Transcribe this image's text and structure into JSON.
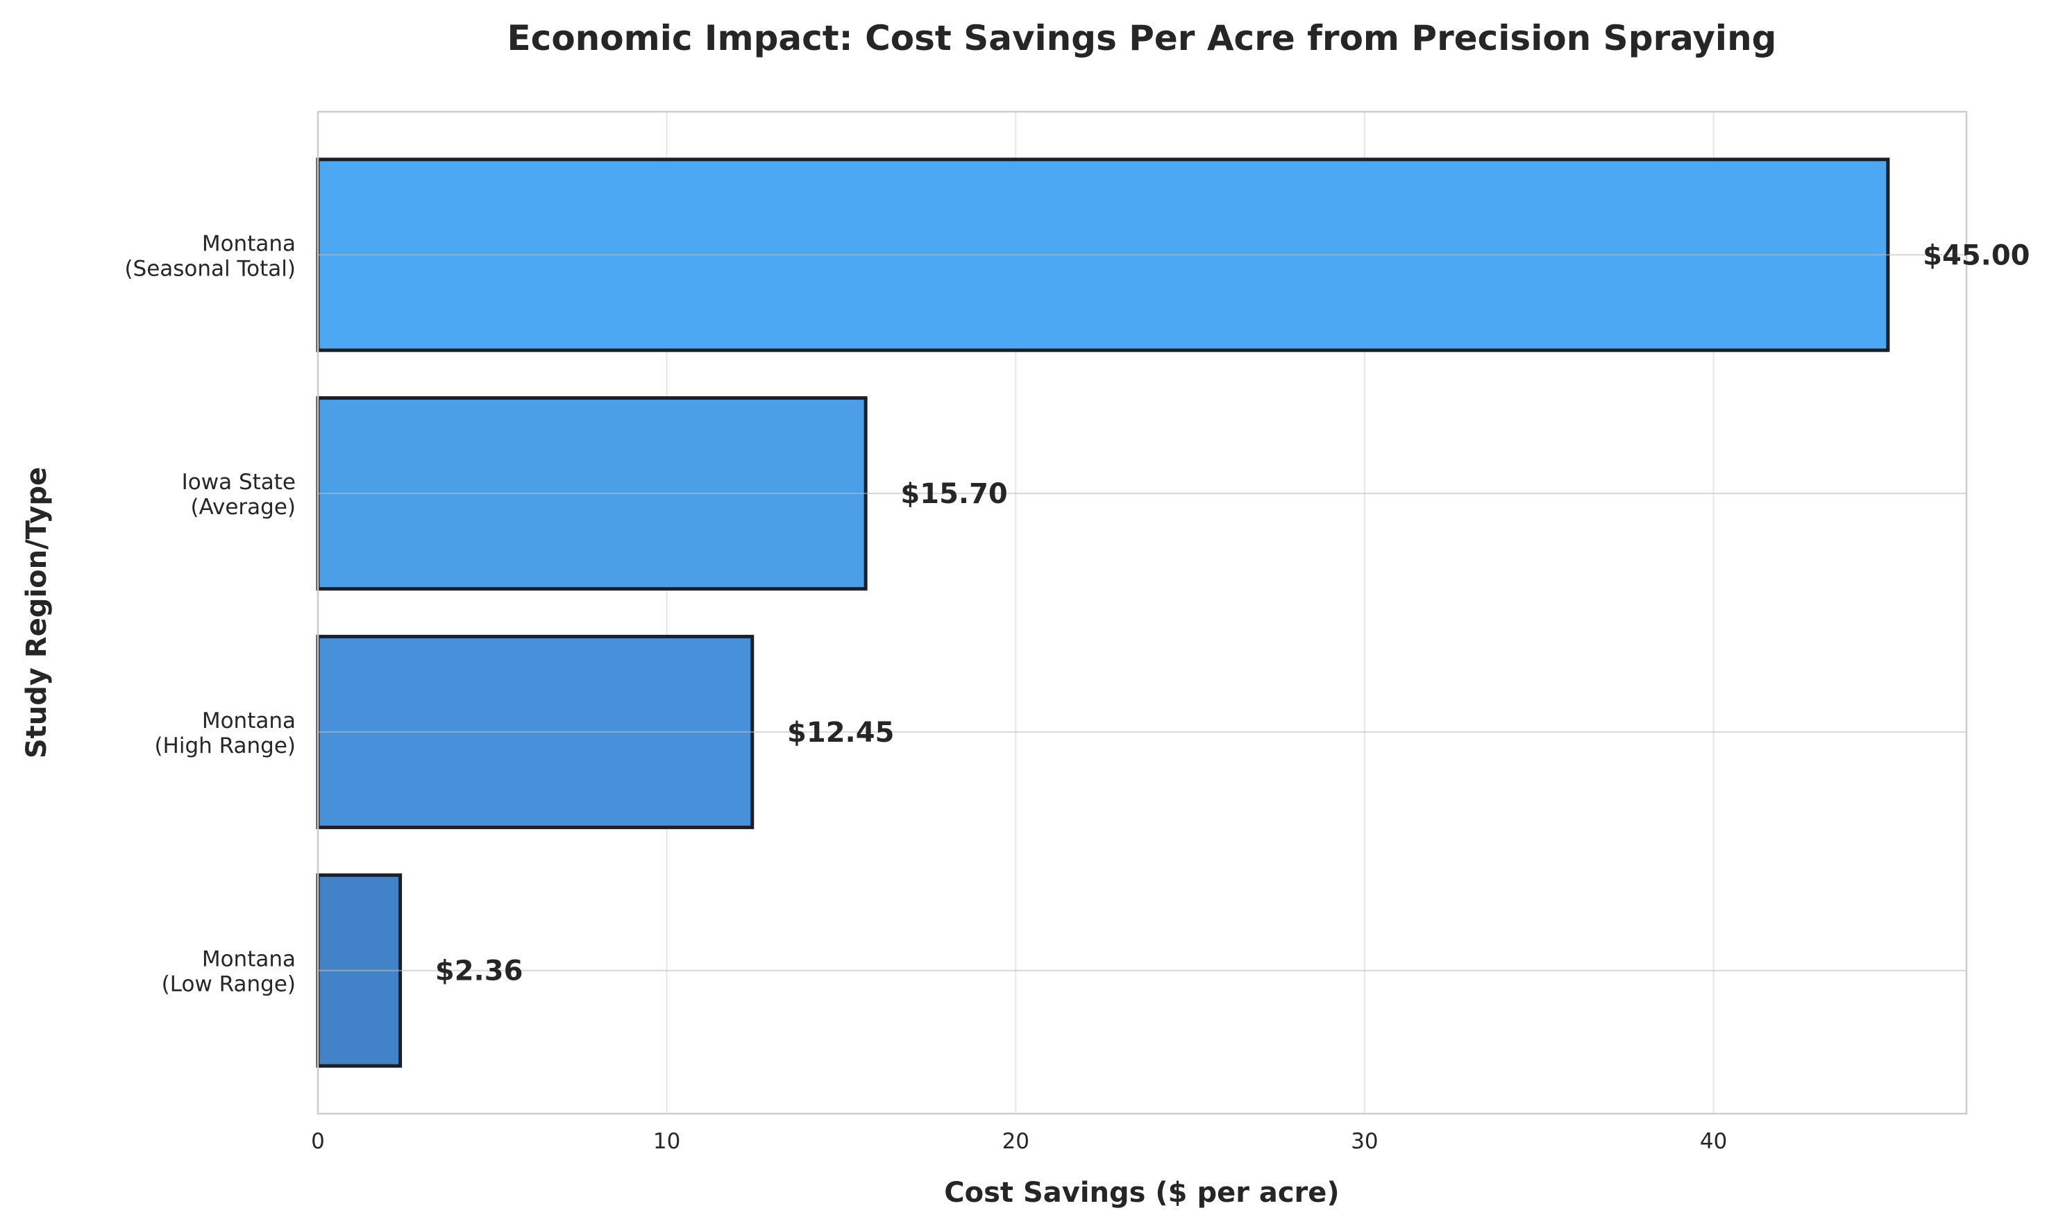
{
  "chart_data": {
    "type": "bar",
    "orientation": "horizontal",
    "title": "Economic Impact: Cost Savings Per Acre from Precision Spraying",
    "xlabel": "Cost Savings ($ per acre)",
    "ylabel": "Study Region/Type",
    "categories": [
      [
        "Montana",
        "(Low Range)"
      ],
      [
        "Montana",
        "(High Range)"
      ],
      [
        "Iowa State",
        "(Average)"
      ],
      [
        "Montana",
        "(Seasonal Total)"
      ]
    ],
    "values": [
      2.36,
      12.45,
      15.7,
      45.0
    ],
    "data_labels": [
      "$2.36",
      "$12.45",
      "$15.70",
      "$45.00"
    ],
    "colors": [
      "#4282c8",
      "#4890da",
      "#4a9fe6",
      "#4ca8f2"
    ],
    "edge_color": "#1a1f2a",
    "xlim": [
      0,
      47.25
    ],
    "xticks": [
      0,
      10,
      20,
      30,
      40
    ],
    "grid": true
  }
}
